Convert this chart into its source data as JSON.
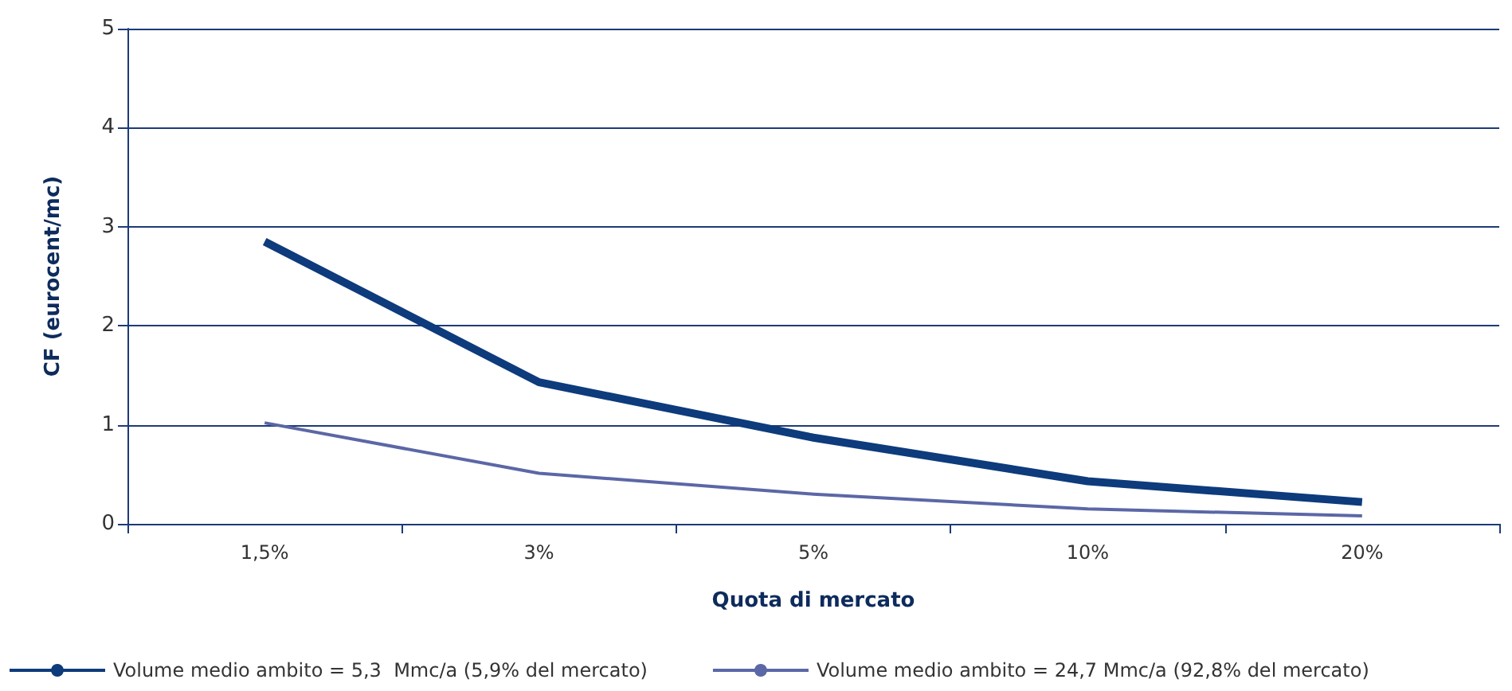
{
  "chart_data": {
    "type": "line",
    "xlabel": "Quota di mercato",
    "ylabel": "CF (eurocent/mc)",
    "categories": [
      "1,5%",
      "3%",
      "5%",
      "10%",
      "20%"
    ],
    "series": [
      {
        "name": "Volume medio ambito = 5,3  Mmc/a (5,9% del mercato)",
        "color": "#0d3b7c",
        "values": [
          2.85,
          1.43,
          0.87,
          0.43,
          0.22
        ]
      },
      {
        "name": "Volume medio ambito = 24,7 Mmc/a (92,8% del mercato)",
        "color": "#5b67a6",
        "values": [
          1.02,
          0.51,
          0.3,
          0.15,
          0.08
        ]
      }
    ],
    "ylim": [
      0,
      5
    ],
    "yticks": [
      0,
      1,
      2,
      3,
      4,
      5
    ],
    "grid": "y",
    "legend": "bottom",
    "marker": "none"
  }
}
